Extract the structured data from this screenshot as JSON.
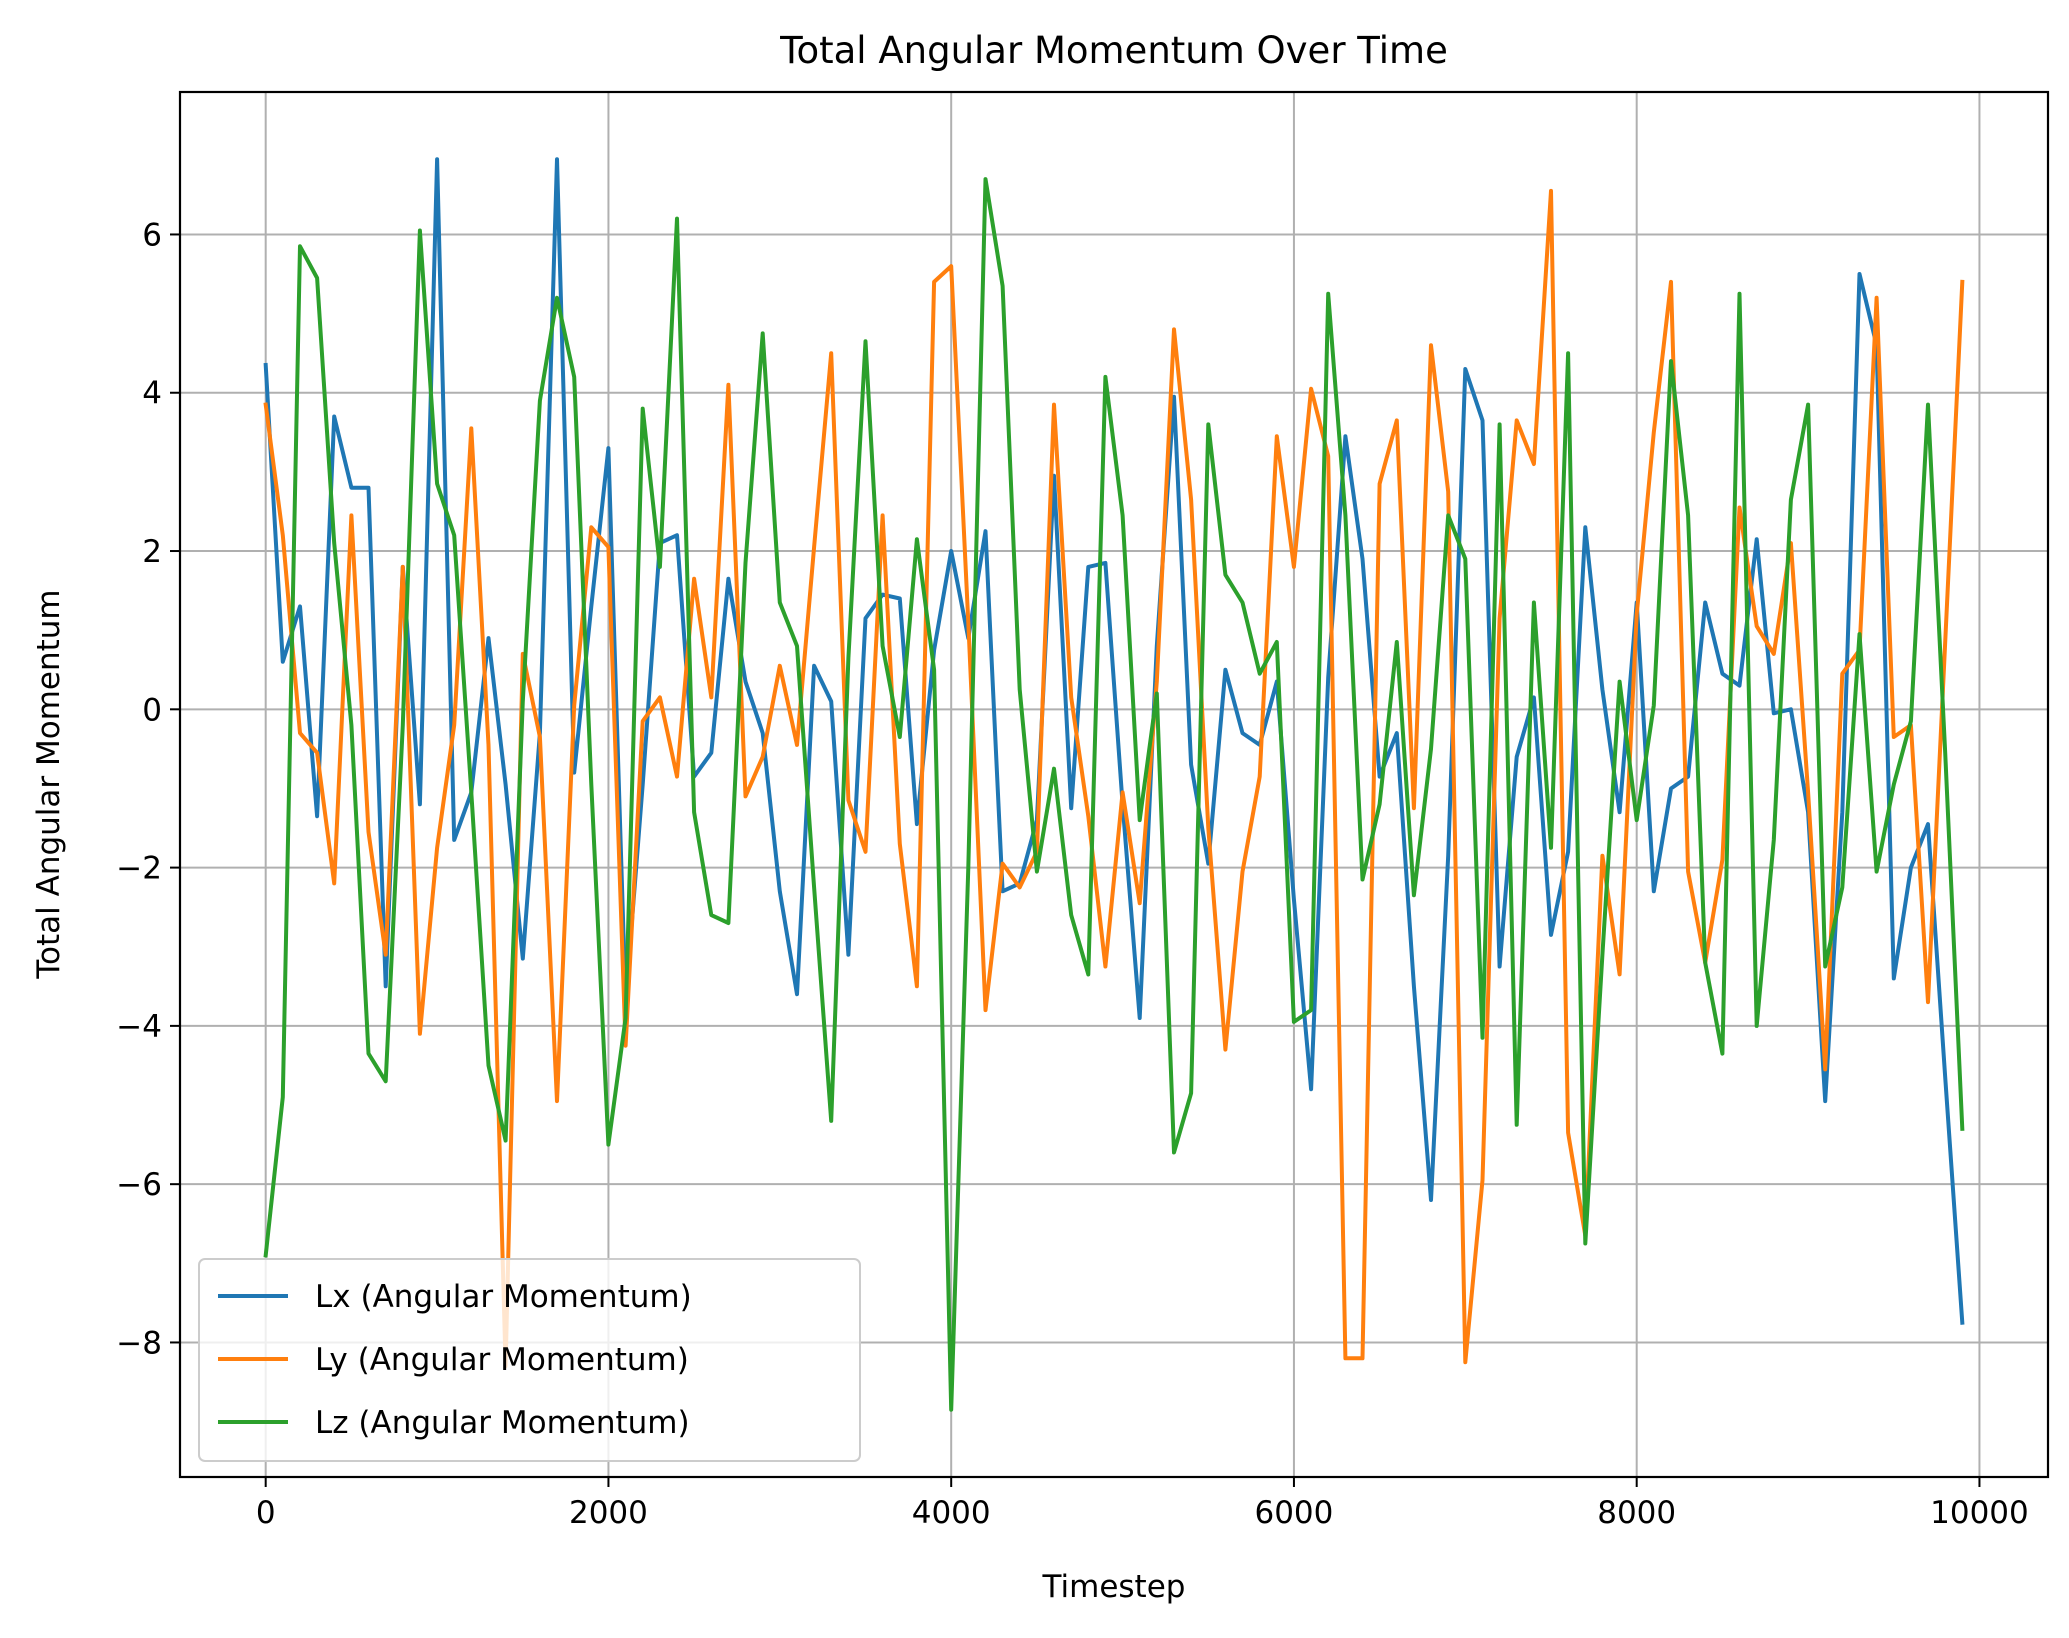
{
  "chart_data": {
    "type": "line",
    "title": "Total Angular Momentum Over Time",
    "xlabel": "Timestep",
    "ylabel": "Total Angular Momentum",
    "xlim": [
      -500,
      10400
    ],
    "ylim": [
      -9.7,
      7.8
    ],
    "xticks": [
      0,
      2000,
      4000,
      6000,
      8000,
      10000
    ],
    "xtick_labels": [
      "0",
      "2000",
      "4000",
      "6000",
      "8000",
      "10000"
    ],
    "yticks": [
      -8,
      -6,
      -4,
      -2,
      0,
      2,
      4,
      6
    ],
    "ytick_labels": [
      "−8",
      "−6",
      "−4",
      "−2",
      "0",
      "2",
      "4",
      "6"
    ],
    "grid": true,
    "legend_position": "lower-left",
    "x": [
      0,
      100,
      200,
      300,
      400,
      500,
      600,
      700,
      800,
      900,
      1000,
      1100,
      1200,
      1300,
      1400,
      1500,
      1600,
      1700,
      1800,
      1900,
      2000,
      2100,
      2200,
      2300,
      2400,
      2500,
      2600,
      2700,
      2800,
      2900,
      3000,
      3100,
      3200,
      3300,
      3400,
      3500,
      3600,
      3700,
      3800,
      3900,
      4000,
      4100,
      4200,
      4300,
      4400,
      4500,
      4600,
      4700,
      4800,
      4900,
      5000,
      5100,
      5200,
      5300,
      5400,
      5500,
      5600,
      5700,
      5800,
      5900,
      6000,
      6100,
      6200,
      6300,
      6400,
      6500,
      6600,
      6700,
      6800,
      6900,
      7000,
      7100,
      7200,
      7300,
      7400,
      7500,
      7600,
      7700,
      7800,
      7900,
      8000,
      8100,
      8200,
      8300,
      8400,
      8500,
      8600,
      8700,
      8800,
      8900,
      9000,
      9100,
      9200,
      9300,
      9400,
      9500,
      9600,
      9700,
      9800,
      9900
    ],
    "series": [
      {
        "name": "Lx (Angular Momentum)",
        "color": "#1f77b4",
        "values": [
          4.35,
          0.6,
          1.3,
          -1.35,
          3.7,
          2.8,
          2.8,
          -3.5,
          1.8,
          -1.2,
          6.95,
          -1.65,
          -1.05,
          0.9,
          -0.95,
          -3.15,
          -0.3,
          6.95,
          -0.8,
          1.3,
          3.3,
          -3.7,
          -0.95,
          2.1,
          2.2,
          -0.85,
          -0.55,
          1.65,
          0.35,
          -0.3,
          -2.3,
          -3.6,
          0.55,
          0.1,
          -3.1,
          1.15,
          1.45,
          1.4,
          -1.45,
          0.75,
          2.0,
          0.9,
          2.25,
          -2.3,
          -2.2,
          -1.4,
          2.95,
          -1.25,
          1.8,
          1.85,
          -1.2,
          -3.9,
          0.8,
          3.95,
          -0.7,
          -1.95,
          0.5,
          -0.3,
          -0.45,
          0.35,
          -2.4,
          -4.8,
          0.4,
          3.45,
          1.9,
          -0.85,
          -0.3,
          -3.5,
          -6.2,
          -1.85,
          4.3,
          3.65,
          -3.25,
          -0.6,
          0.15,
          -2.85,
          -1.8,
          2.3,
          0.25,
          -1.3,
          1.35,
          -2.3,
          -1.0,
          -0.85,
          1.35,
          0.45,
          0.3,
          2.15,
          -0.05,
          0.0,
          -1.3,
          -4.95,
          -1.3,
          5.5,
          4.6,
          -3.4,
          -2.0,
          -1.45,
          -4.65,
          -7.75
        ]
      },
      {
        "name": "Ly (Angular Momentum)",
        "color": "#ff7f0e",
        "values": [
          3.85,
          2.2,
          -0.3,
          -0.55,
          -2.2,
          2.45,
          -1.55,
          -3.1,
          1.8,
          -4.1,
          -1.75,
          -0.2,
          3.55,
          -0.45,
          -8.3,
          0.7,
          -0.35,
          -4.95,
          0.05,
          2.3,
          2.05,
          -4.25,
          -0.15,
          0.15,
          -0.85,
          1.65,
          0.15,
          4.1,
          -1.1,
          -0.6,
          0.55,
          -0.45,
          2.05,
          4.5,
          -1.15,
          -1.8,
          2.45,
          -1.7,
          -3.5,
          5.4,
          5.6,
          1.1,
          -3.8,
          -1.95,
          -2.25,
          -1.8,
          3.85,
          0.15,
          -1.35,
          -3.25,
          -1.05,
          -2.45,
          0.35,
          4.8,
          2.65,
          -1.5,
          -4.3,
          -2.05,
          -0.85,
          3.45,
          1.8,
          4.05,
          3.2,
          -8.2,
          -8.2,
          2.85,
          3.65,
          -1.25,
          4.6,
          2.75,
          -8.25,
          -5.95,
          1.15,
          3.65,
          3.1,
          6.55,
          -5.35,
          -6.65,
          -1.85,
          -3.35,
          1.2,
          3.5,
          5.4,
          -2.05,
          -3.2,
          -1.9,
          2.55,
          1.05,
          0.7,
          2.1,
          -1.05,
          -4.55,
          0.45,
          0.75,
          5.2,
          -0.35,
          -0.2,
          -3.7,
          0.85,
          5.4
        ]
      },
      {
        "name": "Lz (Angular Momentum)",
        "color": "#2ca02c",
        "values": [
          -6.9,
          -4.9,
          5.85,
          5.45,
          2.1,
          -0.2,
          -4.35,
          -4.7,
          -0.2,
          6.05,
          2.85,
          2.2,
          -1.05,
          -4.5,
          -5.45,
          0.1,
          3.9,
          5.2,
          4.2,
          -0.95,
          -5.5,
          -3.9,
          3.8,
          1.8,
          6.2,
          -1.3,
          -2.6,
          -2.7,
          1.85,
          4.75,
          1.35,
          0.8,
          -2.25,
          -5.2,
          0.65,
          4.65,
          0.8,
          -0.35,
          2.15,
          0.5,
          -8.85,
          -2.0,
          6.7,
          5.35,
          0.25,
          -2.05,
          -0.75,
          -2.6,
          -3.35,
          4.2,
          2.45,
          -1.4,
          0.2,
          -5.6,
          -4.85,
          3.6,
          1.7,
          1.35,
          0.45,
          0.85,
          -3.95,
          -3.8,
          5.25,
          2.45,
          -2.15,
          -1.2,
          0.85,
          -2.35,
          -0.5,
          2.45,
          1.9,
          -4.15,
          3.6,
          -5.25,
          1.35,
          -1.75,
          4.5,
          -6.75,
          -3.1,
          0.35,
          -1.4,
          0.05,
          4.4,
          2.45,
          -3.2,
          -4.35,
          5.25,
          -4.0,
          -1.65,
          2.65,
          3.85,
          -3.25,
          -2.25,
          0.95,
          -2.05,
          -0.95,
          -0.15,
          3.85,
          -0.55,
          -5.3
        ]
      }
    ]
  }
}
